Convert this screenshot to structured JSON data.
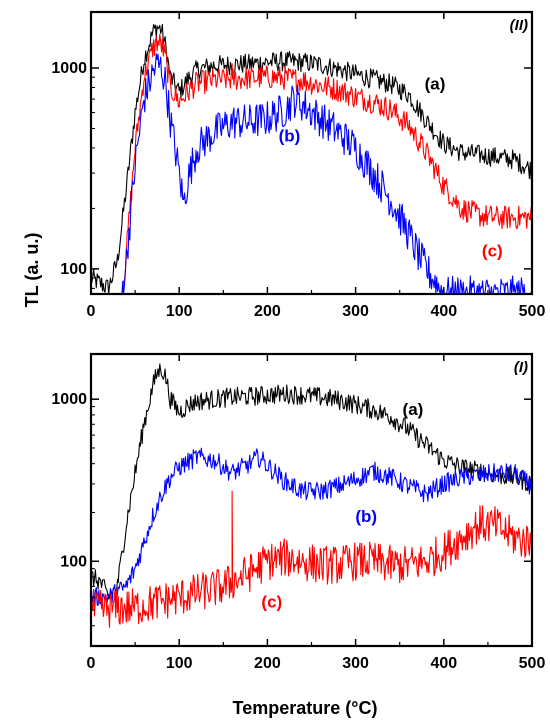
{
  "ylabel": "TL (a. u.)",
  "xlabel": "Temperature (°C)",
  "chart_data": [
    {
      "type": "line",
      "panel_tag": "(II)",
      "yscale": "log",
      "xlim": [
        0,
        500
      ],
      "ylim": [
        75,
        1900
      ],
      "x_ticks": [
        "0",
        "100",
        "200",
        "300",
        "400",
        "500"
      ],
      "y_ticks": [
        "100",
        "1000"
      ],
      "y_tick_values": [
        100,
        1000
      ],
      "series": [
        {
          "label": "(a)",
          "color": "#000000",
          "noise": 0.05,
          "x": [
            0,
            10,
            20,
            30,
            40,
            50,
            60,
            70,
            75,
            80,
            85,
            90,
            100,
            110,
            120,
            140,
            160,
            180,
            200,
            220,
            240,
            260,
            280,
            300,
            320,
            340,
            360,
            380,
            400,
            420,
            440,
            460,
            480,
            500
          ],
          "y": [
            90,
            85,
            80,
            110,
            250,
            600,
            1100,
            1500,
            1600,
            1550,
            1250,
            900,
            760,
            880,
            980,
            1030,
            1040,
            1050,
            1070,
            1080,
            1070,
            1040,
            990,
            930,
            880,
            830,
            740,
            550,
            420,
            380,
            370,
            360,
            350,
            310
          ]
        },
        {
          "label": "(c)",
          "color": "#ff0000",
          "noise": 0.06,
          "x": [
            35,
            40,
            50,
            60,
            70,
            75,
            80,
            85,
            90,
            100,
            110,
            120,
            140,
            160,
            180,
            200,
            220,
            240,
            260,
            280,
            300,
            320,
            340,
            360,
            380,
            400,
            420,
            440,
            460,
            480,
            500
          ],
          "y": [
            75,
            120,
            400,
            900,
            1250,
            1350,
            1300,
            1100,
            800,
            680,
            760,
            840,
            870,
            880,
            890,
            900,
            890,
            870,
            820,
            780,
            720,
            680,
            620,
            520,
            380,
            260,
            200,
            185,
            180,
            180,
            180
          ],
          "spike": {
            "x": 160,
            "y": 1050
          }
        },
        {
          "label": "(b)",
          "color": "#0000ff",
          "noise": 0.09,
          "x": [
            35,
            40,
            50,
            60,
            70,
            75,
            80,
            85,
            90,
            100,
            105,
            110,
            120,
            140,
            160,
            180,
            200,
            220,
            230,
            240,
            260,
            280,
            300,
            320,
            340,
            360,
            370,
            380,
            400,
            420,
            440,
            460,
            480,
            500
          ],
          "y": [
            75,
            110,
            330,
            700,
            950,
            1050,
            1000,
            820,
            550,
            300,
            210,
            280,
            400,
            480,
            540,
            540,
            560,
            620,
            700,
            660,
            560,
            480,
            400,
            300,
            220,
            150,
            120,
            100,
            75,
            75,
            75,
            75,
            75,
            75
          ]
        }
      ],
      "annotations": [
        {
          "text": "(a)",
          "x": 390,
          "y": 780,
          "color": "#000000"
        },
        {
          "text": "(b)",
          "x": 225,
          "y": 430,
          "color": "#0000ff"
        },
        {
          "text": "(c)",
          "x": 455,
          "y": 115,
          "color": "#ff0000"
        }
      ]
    },
    {
      "type": "line",
      "panel_tag": "(I)",
      "yscale": "log",
      "xlim": [
        0,
        500
      ],
      "ylim": [
        30,
        1900
      ],
      "x_ticks": [
        "0",
        "100",
        "200",
        "300",
        "400",
        "500"
      ],
      "y_ticks": [
        "100",
        "1000"
      ],
      "y_tick_values": [
        100,
        1000
      ],
      "series": [
        {
          "label": "(a)",
          "color": "#000000",
          "noise": 0.06,
          "x": [
            0,
            10,
            20,
            30,
            40,
            50,
            60,
            70,
            75,
            80,
            85,
            90,
            100,
            110,
            120,
            140,
            160,
            180,
            200,
            220,
            240,
            260,
            280,
            300,
            320,
            340,
            360,
            380,
            400,
            420,
            440,
            460,
            480,
            500
          ],
          "y": [
            80,
            75,
            60,
            70,
            170,
            350,
            700,
            1200,
            1450,
            1550,
            1350,
            1000,
            830,
            920,
            970,
            1000,
            1030,
            1040,
            1060,
            1080,
            1060,
            1030,
            990,
            930,
            860,
            780,
            650,
            520,
            420,
            380,
            360,
            340,
            330,
            300
          ]
        },
        {
          "label": "(b)",
          "color": "#0000ff",
          "noise": 0.06,
          "x": [
            0,
            20,
            40,
            50,
            60,
            70,
            80,
            90,
            100,
            120,
            140,
            160,
            180,
            190,
            200,
            220,
            240,
            260,
            280,
            300,
            320,
            340,
            360,
            380,
            400,
            420,
            440,
            460,
            480,
            500
          ],
          "y": [
            60,
            60,
            70,
            90,
            130,
            190,
            260,
            330,
            380,
            440,
            420,
            350,
            400,
            440,
            390,
            310,
            270,
            270,
            290,
            320,
            360,
            330,
            290,
            260,
            300,
            330,
            340,
            350,
            350,
            290
          ]
        },
        {
          "label": "(c)",
          "color": "#ff0000",
          "noise": 0.12,
          "x": [
            0,
            50,
            100,
            150,
            180,
            200,
            220,
            240,
            260,
            280,
            300,
            320,
            340,
            360,
            380,
            400,
            420,
            440,
            460,
            480,
            500
          ],
          "y": [
            50,
            52,
            60,
            70,
            85,
            100,
            105,
            100,
            95,
            95,
            100,
            100,
            95,
            95,
            100,
            115,
            140,
            170,
            165,
            140,
            130
          ],
          "spike": {
            "x": 160,
            "y": 270
          }
        }
      ],
      "annotations": [
        {
          "text": "(a)",
          "x": 365,
          "y": 800,
          "color": "#000000"
        },
        {
          "text": "(b)",
          "x": 312,
          "y": 175,
          "color": "#0000ff"
        },
        {
          "text": "(c)",
          "x": 205,
          "y": 52,
          "color": "#ff0000"
        }
      ]
    }
  ]
}
